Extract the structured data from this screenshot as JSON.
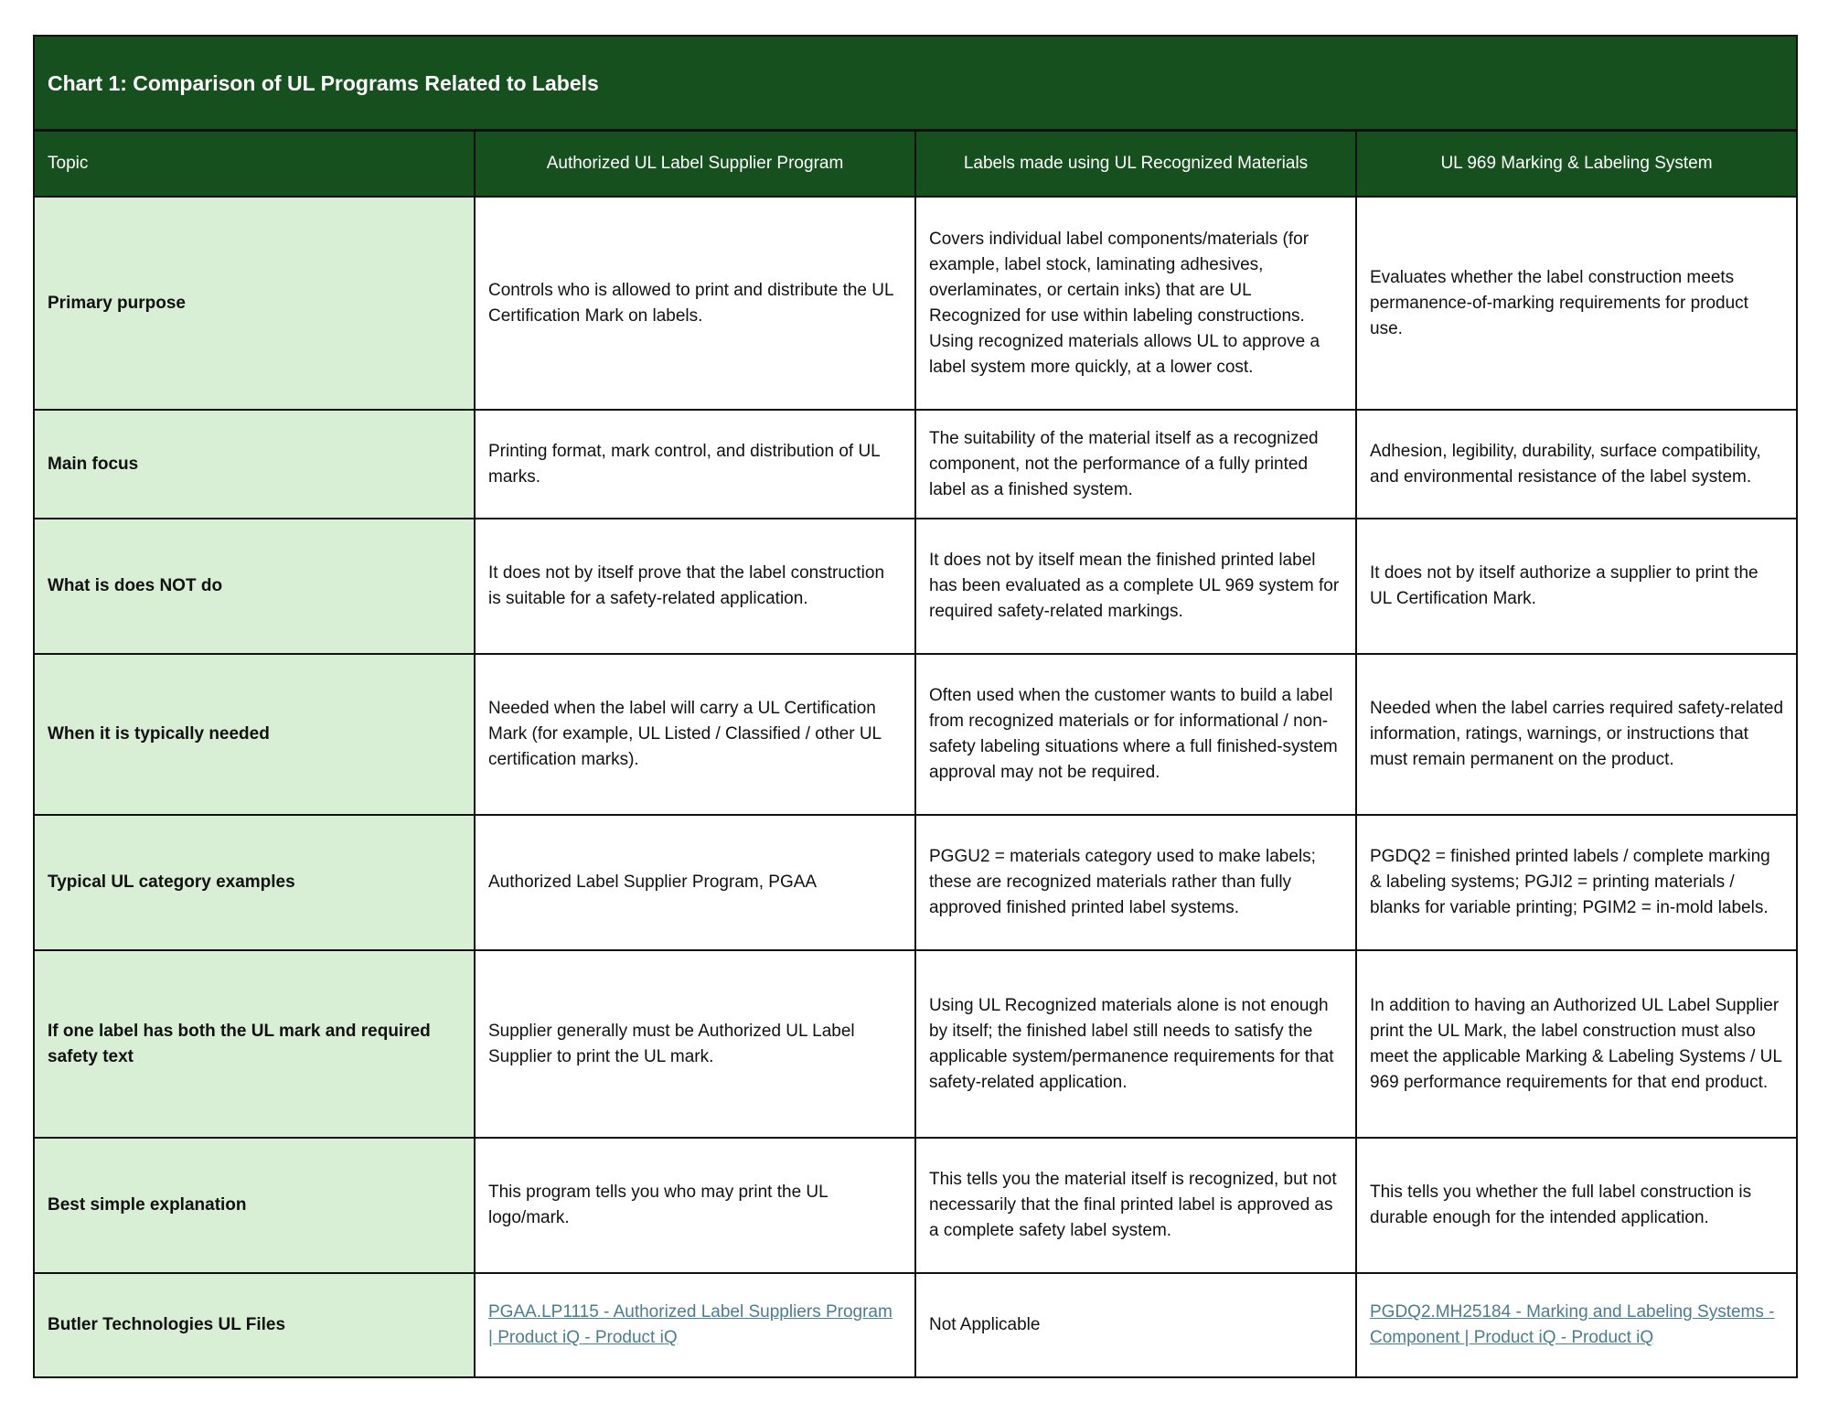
{
  "title": "Chart 1: Comparison of UL Programs Related to Labels",
  "colors": {
    "header_bg": "#17501f",
    "topic_bg": "#d9efd5",
    "link": "#4a7d8e"
  },
  "columns": [
    "Topic",
    "Authorized UL Label Supplier Program",
    "Labels made using UL Recognized Materials",
    "UL 969 Marking & Labeling System"
  ],
  "rows": [
    {
      "topic": "Primary purpose",
      "c1": "Controls who is allowed to print and distribute the UL Certification Mark on labels.",
      "c2": "Covers individual label components/materials (for example, label stock, laminating adhesives, overlaminates, or certain inks) that are UL Recognized for use within labeling constructions. Using recognized materials allows UL to approve a label system more quickly, at a lower cost.",
      "c3": "Evaluates whether the label construction meets permanence-of-marking requirements for product use."
    },
    {
      "topic": "Main focus",
      "c1": "Printing format, mark control, and distribution of UL marks.",
      "c2": "The suitability of the material itself as a recognized component, not the performance of a fully printed label as a finished system.",
      "c3": "Adhesion, legibility, durability, surface compatibility, and environmental resistance of the label system."
    },
    {
      "topic": "What is does NOT do",
      "c1": "It does not by itself prove that the label construction is suitable for a safety-related application.",
      "c2": "It does not by itself mean the finished printed label has been evaluated as a complete UL 969 system for required safety-related markings.",
      "c3": "It does not by itself authorize a supplier to print the UL Certification Mark."
    },
    {
      "topic": "When it is typically needed",
      "c1": "Needed when the label will carry a UL Certification Mark (for example, UL Listed / Classified / other UL certification marks).",
      "c2": "Often used when the customer wants to build a label from recognized materials or for informational / non-safety labeling situations where a full finished-system approval may not be required.",
      "c3": "Needed when the label carries required safety-related information, ratings, warnings, or instructions that must remain permanent on the product."
    },
    {
      "topic": "Typical UL category examples",
      "c1": "Authorized Label Supplier Program, PGAA",
      "c2": "PGGU2 = materials category used to make labels; these are recognized materials rather than fully approved finished printed label systems.",
      "c3": "PGDQ2 = finished printed labels / complete marking & labeling systems; PGJI2 = printing materials / blanks for variable printing; PGIM2 = in-mold labels."
    },
    {
      "topic": "If one label has both the UL mark and required safety text",
      "c1": "Supplier generally must be Authorized UL Label Supplier to print the UL mark.",
      "c2": "Using UL Recognized materials alone is not enough by itself; the finished label still needs to satisfy the applicable system/permanence requirements for that safety-related application.",
      "c3": "In addition to having an Authorized UL Label Supplier print the UL Mark, the label construction must also meet the applicable Marking & Labeling Systems / UL 969 performance requirements for that end product."
    },
    {
      "topic": "Best simple explanation",
      "c1": "This program tells you who may print the UL logo/mark.",
      "c2": "This tells you the material itself is recognized, but not necessarily that the final printed label is approved as a complete safety label system.",
      "c3": "This tells you whether the full label construction is durable enough for the intended application."
    }
  ],
  "files_row": {
    "topic": "Butler Technologies UL Files",
    "c1_link": "PGAA.LP1115 - Authorized Label Suppliers Program | Product iQ - Product iQ",
    "c2": "Not Applicable",
    "c3_link": "PGDQ2.MH25184 - Marking and Labeling Systems - Component | Product iQ - Product iQ"
  }
}
